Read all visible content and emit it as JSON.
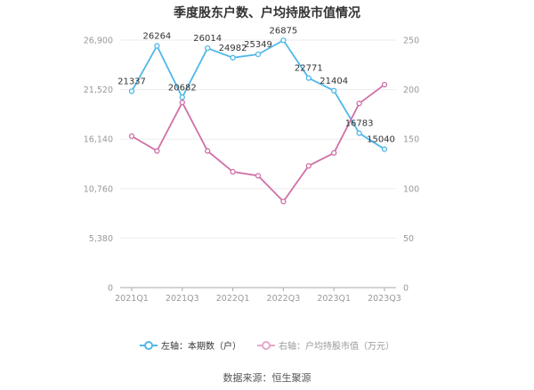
{
  "title": "季度股东户数、户均持股市值情况",
  "chart_data": {
    "type": "line",
    "title": "季度股东户数、户均持股市值情况",
    "x": [
      "2021Q1",
      "2021Q2",
      "2021Q3",
      "2021Q4",
      "2022Q1",
      "2022Q2",
      "2022Q3",
      "2022Q4",
      "2023Q1",
      "2023Q2",
      "2023Q3"
    ],
    "x_tick_labels": [
      "2021Q1",
      "2021Q3",
      "2022Q1",
      "2022Q3",
      "2023Q1",
      "2023Q3"
    ],
    "series": [
      {
        "name": "左轴：本期数（户）",
        "axis": "left",
        "color": "#4fb8e8",
        "values": [
          21337,
          26264,
          20682,
          26014,
          24982,
          25349,
          26875,
          22771,
          21404,
          16783,
          15040
        ]
      },
      {
        "name": "右轴：户均持股市值（万元）",
        "axis": "right",
        "color": "#d06fa6",
        "values": [
          153,
          138,
          187,
          138,
          117,
          113,
          87,
          123,
          136,
          186,
          205
        ]
      }
    ],
    "left_axis": {
      "ticks": [
        "0",
        "5,380",
        "10,760",
        "16,140",
        "21,520",
        "26,900"
      ],
      "ylim": [
        0,
        26900
      ]
    },
    "right_axis": {
      "ticks": [
        "0",
        "50",
        "100",
        "150",
        "200",
        "250"
      ],
      "ylim": [
        0,
        250
      ]
    },
    "grid": true,
    "legend_position": "bottom"
  },
  "legend": {
    "left": "左轴：本期数（户）",
    "right": "右轴：户均持股市值（万元）"
  },
  "source": "数据来源：恒生聚源"
}
